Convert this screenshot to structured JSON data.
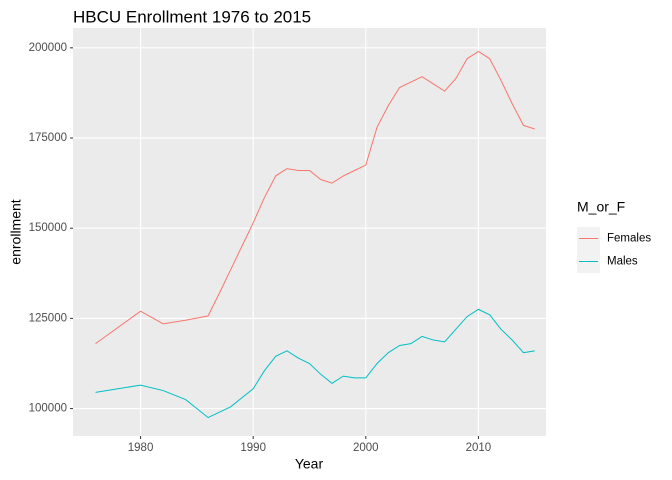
{
  "chart_data": {
    "type": "line",
    "title": "HBCU Enrollment 1976 to 2015",
    "x_label": "Year",
    "y_label": "enrollment",
    "legend_title": "M_or_F",
    "legend_position": "right",
    "x": [
      1976,
      1980,
      1982,
      1984,
      1986,
      1987,
      1988,
      1989,
      1990,
      1991,
      1992,
      1993,
      1994,
      1995,
      1996,
      1997,
      1998,
      1999,
      2000,
      2001,
      2002,
      2003,
      2004,
      2005,
      2006,
      2007,
      2008,
      2009,
      2010,
      2011,
      2012,
      2013,
      2014,
      2015
    ],
    "series": [
      {
        "name": "Females",
        "color": "#F8766D",
        "values": [
          118000,
          127000,
          123500,
          124500,
          125700,
          132000,
          138500,
          145000,
          151500,
          158500,
          164500,
          166500,
          166000,
          166000,
          163500,
          162500,
          164500,
          166000,
          167500,
          178000,
          184000,
          189000,
          190500,
          192000,
          190000,
          188000,
          191500,
          197000,
          199000,
          197000,
          191000,
          184500,
          178500,
          177500
        ]
      },
      {
        "name": "Males",
        "color": "#00BFC4",
        "values": [
          104500,
          106500,
          105000,
          102500,
          97500,
          99000,
          100500,
          103000,
          105500,
          110500,
          114500,
          116000,
          114000,
          112500,
          109500,
          107000,
          109000,
          108500,
          108500,
          112500,
          115500,
          117500,
          118000,
          120000,
          119000,
          118500,
          122000,
          125500,
          127500,
          126000,
          122000,
          119000,
          115500,
          116000
        ]
      }
    ],
    "xlim": [
      1974,
      2016
    ],
    "xticks": [
      1980,
      1990,
      2000,
      2010
    ],
    "ylim": [
      92400,
      205500
    ],
    "yticks": [
      100000,
      125000,
      150000,
      175000,
      200000
    ],
    "grid": true
  }
}
